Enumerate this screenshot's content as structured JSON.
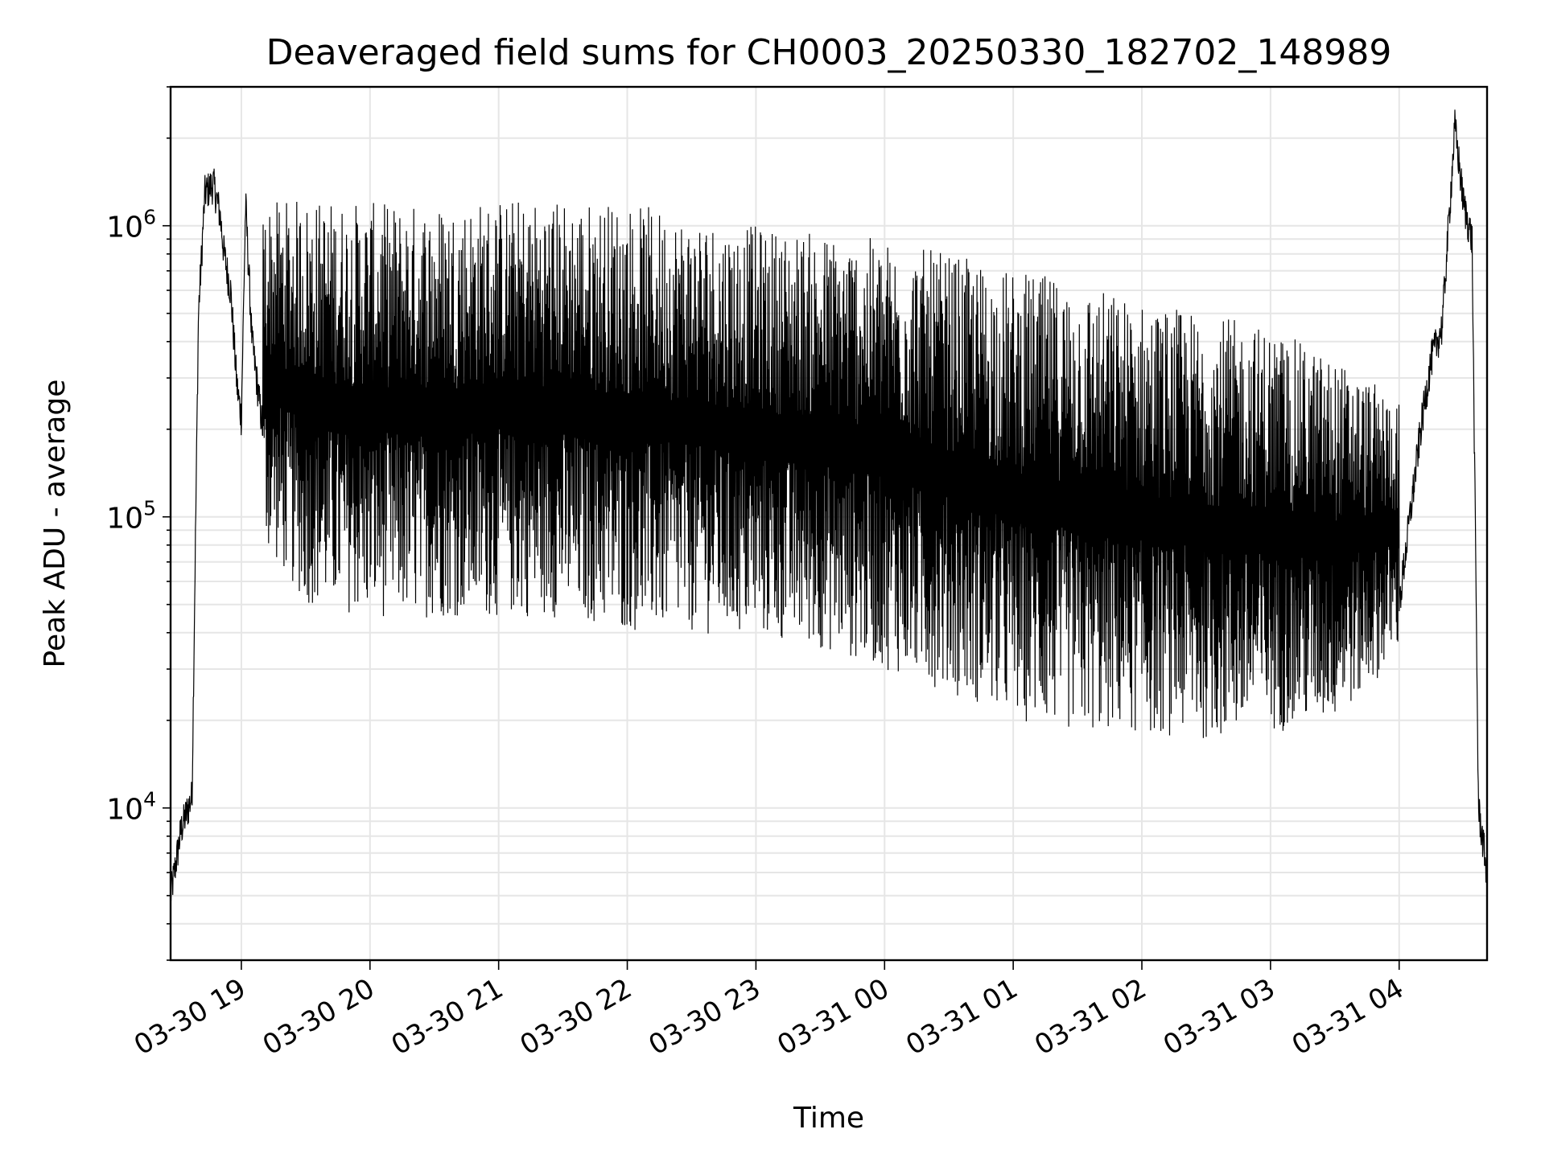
{
  "chart_data": {
    "type": "line",
    "title": "Deaveraged field sums for CH0003_20250330_182702_148989",
    "xlabel": "Time",
    "ylabel": "Peak ADU - average",
    "x_range": [
      "2025-03-30 18:27",
      "2025-03-31 04:41"
    ],
    "xticks": [
      "03-30 19",
      "03-30 20",
      "03-30 21",
      "03-30 22",
      "03-30 23",
      "03-31 00",
      "03-31 01",
      "03-31 02",
      "03-31 03",
      "03-31 04"
    ],
    "yscale": "log",
    "ylim": [
      3000,
      3000000
    ],
    "yticks": [
      {
        "base": "10",
        "exp": "4"
      },
      {
        "base": "10",
        "exp": "5"
      },
      {
        "base": "10",
        "exp": "6"
      }
    ],
    "grid": true,
    "line_color": "#000000",
    "grid_color": "#e6e6e6",
    "series": [
      {
        "x": [
          "2025-03-30 18:27",
          "2025-03-30 18:32",
          "2025-03-30 18:37",
          "2025-03-30 18:40",
          "2025-03-30 18:43",
          "2025-03-30 18:47",
          "2025-03-30 18:50",
          "2025-03-30 18:52",
          "2025-03-30 18:55",
          "2025-03-30 18:58",
          "2025-03-30 19:00",
          "2025-03-30 19:02",
          "2025-03-30 19:05",
          "2025-03-30 19:10",
          "2025-03-30 19:30",
          "2025-03-30 20:00",
          "2025-03-30 20:30",
          "2025-03-30 21:00",
          "2025-03-30 21:30",
          "2025-03-30 22:00",
          "2025-03-30 22:30",
          "2025-03-30 23:00",
          "2025-03-30 23:30",
          "2025-03-31 00:00",
          "2025-03-31 00:30",
          "2025-03-31 01:00",
          "2025-03-31 01:30",
          "2025-03-31 02:00",
          "2025-03-31 02:30",
          "2025-03-31 03:00",
          "2025-03-31 03:30",
          "2025-03-31 03:45",
          "2025-03-31 04:00",
          "2025-03-31 04:10",
          "2025-03-31 04:15",
          "2025-03-31 04:20",
          "2025-03-31 04:26",
          "2025-03-31 04:30",
          "2025-03-31 04:34",
          "2025-03-31 04:37",
          "2025-03-31 04:41"
        ],
        "y": [
          5000,
          8500,
          11000,
          500000,
          1300000,
          1400000,
          1100000,
          800000,
          600000,
          280000,
          220000,
          1200000,
          400000,
          200000,
          1000000,
          1050000,
          1100000,
          1150000,
          1150000,
          1050000,
          950000,
          900000,
          900000,
          800000,
          700000,
          600000,
          500000,
          450000,
          400000,
          300000,
          80000,
          45000,
          50000,
          200000,
          350000,
          450000,
          2200000,
          1200000,
          900000,
          10000,
          6000
        ],
        "band_low": [
          null,
          null,
          null,
          null,
          null,
          null,
          null,
          null,
          null,
          null,
          null,
          null,
          null,
          80000,
          50000,
          45000,
          45000,
          45000,
          45000,
          40000,
          40000,
          38000,
          35000,
          30000,
          25000,
          20000,
          18000,
          18000,
          17000,
          18000,
          20000,
          25000,
          35000,
          null,
          null,
          null,
          null,
          null,
          null,
          null,
          null
        ],
        "band_high": [
          null,
          null,
          null,
          null,
          null,
          null,
          null,
          null,
          null,
          null,
          null,
          null,
          null,
          1200000,
          1250000,
          1200000,
          1200000,
          1250000,
          1250000,
          1200000,
          1100000,
          1000000,
          950000,
          900000,
          800000,
          700000,
          650000,
          550000,
          500000,
          450000,
          350000,
          300000,
          250000,
          null,
          null,
          null,
          null,
          null,
          null,
          null,
          null
        ]
      }
    ]
  }
}
